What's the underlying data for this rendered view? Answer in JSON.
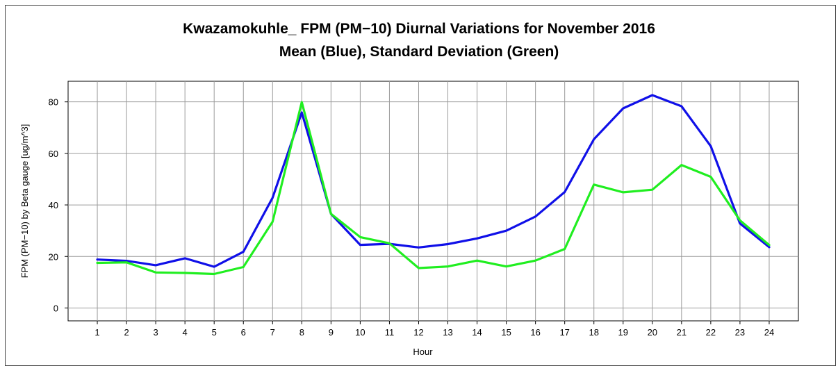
{
  "chart_data": {
    "type": "line",
    "title": "Kwazamokuhle_ FPM (PM−10) Diurnal Variations for November 2016",
    "subtitle": "Mean (Blue), Standard Deviation (Green)",
    "xlabel": "Hour",
    "ylabel": "FPM (PM−10) by Beta gauge  [ug/m^3]",
    "x": [
      1,
      2,
      3,
      4,
      5,
      6,
      7,
      8,
      9,
      10,
      11,
      12,
      13,
      14,
      15,
      16,
      17,
      18,
      19,
      20,
      21,
      22,
      23,
      24
    ],
    "xlim": [
      0,
      25
    ],
    "ylim": [
      -5,
      88
    ],
    "yticks": [
      0,
      20,
      40,
      60,
      80
    ],
    "grid": true,
    "series": [
      {
        "color": "#1010e8",
        "values": [
          18.8,
          18.3,
          16.6,
          19.3,
          16.0,
          21.8,
          42.8,
          75.9,
          36.5,
          24.5,
          24.9,
          23.5,
          24.8,
          27.0,
          30.0,
          35.5,
          45.0,
          65.5,
          77.5,
          82.6,
          78.3,
          62.8,
          32.8,
          23.6
        ]
      },
      {
        "color": "#20ee20",
        "values": [
          17.5,
          17.7,
          13.8,
          13.6,
          13.2,
          15.9,
          33.5,
          79.9,
          36.5,
          27.5,
          25.1,
          15.5,
          16.1,
          18.4,
          16.1,
          18.4,
          22.9,
          47.9,
          44.9,
          45.9,
          55.5,
          50.9,
          34.0,
          24.4
        ]
      }
    ]
  }
}
